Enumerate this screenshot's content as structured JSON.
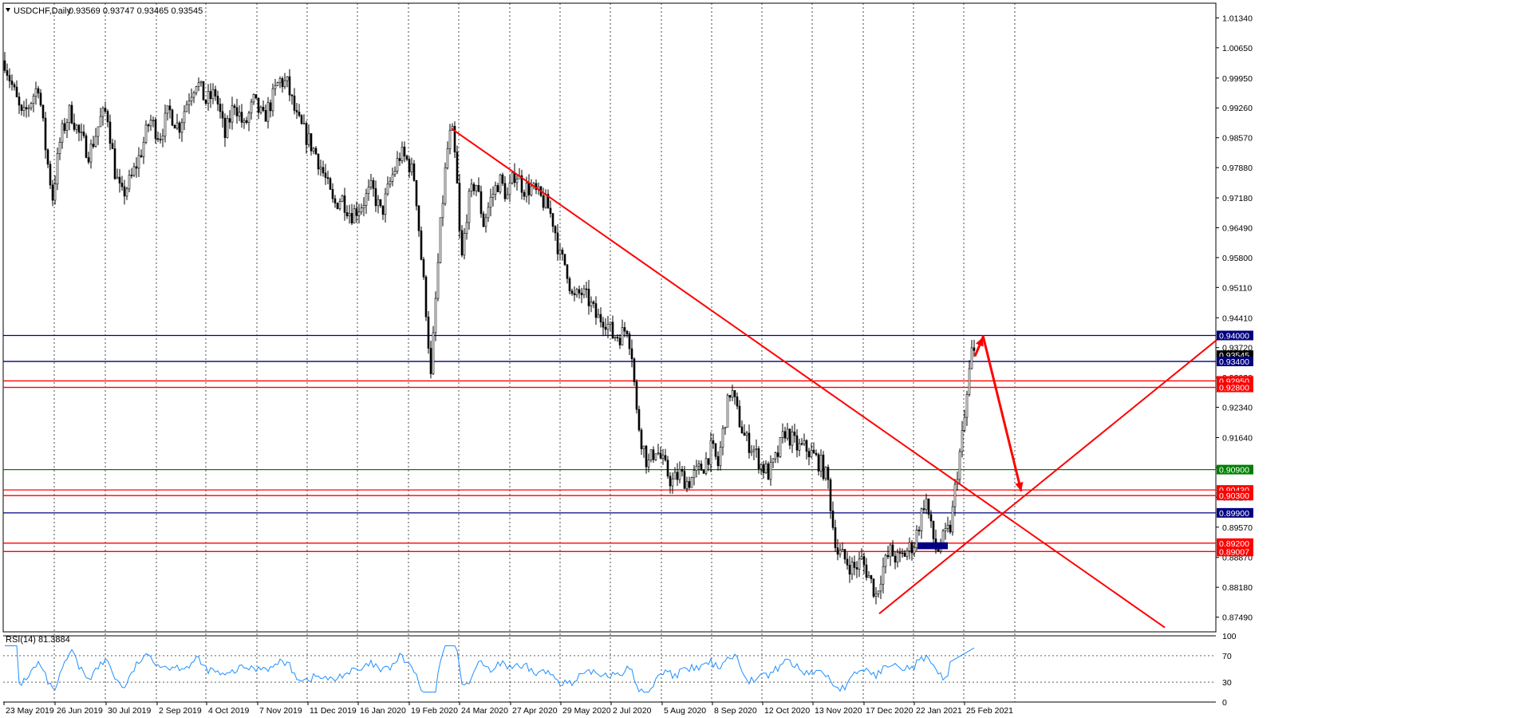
{
  "header": {
    "symbol": "USDCHF,Daily",
    "ohlc": "0.93569 0.93747 0.93465 0.93545"
  },
  "colors": {
    "candles": "#000000",
    "trendlines": "#ff0000",
    "blue_level": "#000080",
    "green_level": "#008000",
    "red_level": "#ff0000",
    "current_price": "#000000",
    "rsi_line": "#1e90ff",
    "grid": "#000000"
  },
  "chart_data": {
    "type": "candlestick",
    "title": "USDCHF,Daily",
    "price_axis": {
      "range": [
        0.8715,
        1.0168
      ],
      "ticks": [
        "1.01340",
        "1.00650",
        "0.99950",
        "0.99260",
        "0.98570",
        "0.97880",
        "0.97180",
        "0.96490",
        "0.95800",
        "0.95110",
        "0.94410",
        "0.93720",
        "0.93030",
        "0.92340",
        "0.91640",
        "0.90950",
        "0.90260",
        "0.89570",
        "0.88870",
        "0.88180",
        "0.87490"
      ]
    },
    "date_axis": {
      "ticks": [
        "23 May 2019",
        "26 Jun 2019",
        "30 Jul 2019",
        "2 Sep 2019",
        "4 Oct 2019",
        "7 Nov 2019",
        "11 Dec 2019",
        "16 Jan 2020",
        "19 Feb 2020",
        "24 Mar 2020",
        "27 Apr 2020",
        "29 May 2020",
        "2 Jul 2020",
        "5 Aug 2020",
        "8 Sep 2020",
        "12 Oct 2020",
        "13 Nov 2020",
        "17 Dec 2020",
        "22 Jan 2021",
        "25 Feb 2021"
      ],
      "grid": true
    },
    "price_path": [
      [
        0,
        1.008
      ],
      [
        8,
        1.002
      ],
      [
        18,
        0.996
      ],
      [
        28,
        0.99
      ],
      [
        38,
        0.994
      ],
      [
        48,
        0.998
      ],
      [
        58,
        0.982
      ],
      [
        66,
        0.972
      ],
      [
        76,
        0.986
      ],
      [
        88,
        0.992
      ],
      [
        100,
        0.986
      ],
      [
        112,
        0.982
      ],
      [
        126,
        0.99
      ],
      [
        134,
        0.992
      ],
      [
        144,
        0.978
      ],
      [
        152,
        0.972
      ],
      [
        164,
        0.976
      ],
      [
        176,
        0.982
      ],
      [
        188,
        0.99
      ],
      [
        200,
        0.986
      ],
      [
        212,
        0.992
      ],
      [
        224,
        0.988
      ],
      [
        236,
        0.995
      ],
      [
        246,
        0.999
      ],
      [
        258,
        0.994
      ],
      [
        270,
        0.996
      ],
      [
        282,
        0.986
      ],
      [
        294,
        0.994
      ],
      [
        306,
        0.988
      ],
      [
        318,
        0.994
      ],
      [
        330,
        0.99
      ],
      [
        340,
        0.994
      ],
      [
        350,
        0.999
      ],
      [
        360,
        0.998
      ],
      [
        372,
        0.99
      ],
      [
        384,
        0.986
      ],
      [
        396,
        0.982
      ],
      [
        408,
        0.976
      ],
      [
        418,
        0.97
      ],
      [
        428,
        0.972
      ],
      [
        440,
        0.968
      ],
      [
        452,
        0.97
      ],
      [
        466,
        0.974
      ],
      [
        478,
        0.968
      ],
      [
        490,
        0.976
      ],
      [
        502,
        0.982
      ],
      [
        512,
        0.98
      ],
      [
        520,
        0.976
      ],
      [
        528,
        0.958
      ],
      [
        535,
        0.944
      ],
      [
        540,
        0.93
      ],
      [
        546,
        0.948
      ],
      [
        552,
        0.965
      ],
      [
        560,
        0.982
      ],
      [
        566,
        0.988
      ],
      [
        572,
        0.978
      ],
      [
        578,
        0.956
      ],
      [
        586,
        0.97
      ],
      [
        596,
        0.976
      ],
      [
        606,
        0.966
      ],
      [
        616,
        0.972
      ],
      [
        626,
        0.976
      ],
      [
        636,
        0.972
      ],
      [
        646,
        0.978
      ],
      [
        656,
        0.974
      ],
      [
        666,
        0.974
      ],
      [
        676,
        0.972
      ],
      [
        686,
        0.97
      ],
      [
        694,
        0.966
      ],
      [
        702,
        0.958
      ],
      [
        710,
        0.956
      ],
      [
        718,
        0.948
      ],
      [
        728,
        0.95
      ],
      [
        738,
        0.948
      ],
      [
        748,
        0.944
      ],
      [
        758,
        0.944
      ],
      [
        768,
        0.94
      ],
      [
        778,
        0.94
      ],
      [
        786,
        0.942
      ],
      [
        792,
        0.936
      ],
      [
        798,
        0.922
      ],
      [
        804,
        0.916
      ],
      [
        812,
        0.91
      ],
      [
        822,
        0.914
      ],
      [
        832,
        0.91
      ],
      [
        842,
        0.906
      ],
      [
        852,
        0.908
      ],
      [
        862,
        0.906
      ],
      [
        872,
        0.908
      ],
      [
        882,
        0.91
      ],
      [
        892,
        0.914
      ],
      [
        900,
        0.91
      ],
      [
        908,
        0.92
      ],
      [
        916,
        0.928
      ],
      [
        924,
        0.922
      ],
      [
        934,
        0.916
      ],
      [
        944,
        0.914
      ],
      [
        954,
        0.91
      ],
      [
        964,
        0.908
      ],
      [
        974,
        0.912
      ],
      [
        984,
        0.918
      ],
      [
        992,
        0.916
      ],
      [
        1000,
        0.914
      ],
      [
        1010,
        0.914
      ],
      [
        1020,
        0.912
      ],
      [
        1030,
        0.91
      ],
      [
        1038,
        0.906
      ],
      [
        1044,
        0.896
      ],
      [
        1050,
        0.89
      ],
      [
        1060,
        0.888
      ],
      [
        1070,
        0.886
      ],
      [
        1080,
        0.888
      ],
      [
        1090,
        0.884
      ],
      [
        1098,
        0.88
      ],
      [
        1106,
        0.886
      ],
      [
        1116,
        0.89
      ],
      [
        1126,
        0.888
      ],
      [
        1136,
        0.89
      ],
      [
        1146,
        0.892
      ],
      [
        1154,
        0.898
      ],
      [
        1160,
        0.903
      ],
      [
        1166,
        0.896
      ],
      [
        1174,
        0.89
      ],
      [
        1180,
        0.892
      ],
      [
        1186,
        0.894
      ],
      [
        1192,
        0.896
      ],
      [
        1198,
        0.906
      ],
      [
        1204,
        0.914
      ],
      [
        1210,
        0.922
      ],
      [
        1214,
        0.93
      ],
      [
        1218,
        0.936
      ],
      [
        1222,
        0.9355
      ]
    ],
    "levels": [
      {
        "value": 0.94,
        "label": "0.94000",
        "kind": "blue"
      },
      {
        "value": 0.93545,
        "label": "0.93545",
        "kind": "current"
      },
      {
        "value": 0.934,
        "label": "0.93400",
        "kind": "blue"
      },
      {
        "value": 0.9295,
        "label": "0.92950",
        "kind": "red"
      },
      {
        "value": 0.928,
        "label": "0.92800",
        "kind": "red"
      },
      {
        "value": 0.909,
        "label": "0.90900",
        "kind": "green"
      },
      {
        "value": 0.9043,
        "label": "0.90430",
        "kind": "red"
      },
      {
        "value": 0.903,
        "label": "0.90300",
        "kind": "red"
      },
      {
        "value": 0.899,
        "label": "0.89900",
        "kind": "blue"
      },
      {
        "value": 0.892,
        "label": "0.89200",
        "kind": "red"
      },
      {
        "value": 0.89007,
        "label": "0.89007",
        "kind": "red"
      }
    ],
    "trendlines": [
      {
        "name": "downtrend",
        "from": [
          566,
          0.9878
        ],
        "to": [
          1460,
          0.8725
        ]
      },
      {
        "name": "uptrend",
        "from": [
          1102,
          0.8757
        ],
        "to": [
          1528,
          0.9394
        ]
      }
    ],
    "arrows": [
      {
        "name": "up-arrow",
        "from": [
          1222,
          0.9352
        ],
        "to": [
          1232,
          0.9396
        ]
      },
      {
        "name": "down-arrow",
        "from": [
          1232,
          0.94
        ],
        "to": [
          1280,
          0.904
        ]
      }
    ],
    "consolidation_box": {
      "from": [
        1150,
        0.8922
      ],
      "to": [
        1188,
        0.8906
      ]
    },
    "rsi": {
      "label": "RSI(14) 81.3884",
      "value": 81.3884,
      "range": [
        0,
        100
      ],
      "ticks": [
        "100",
        "70",
        "30",
        "0"
      ],
      "levels": [
        70,
        30
      ]
    }
  }
}
